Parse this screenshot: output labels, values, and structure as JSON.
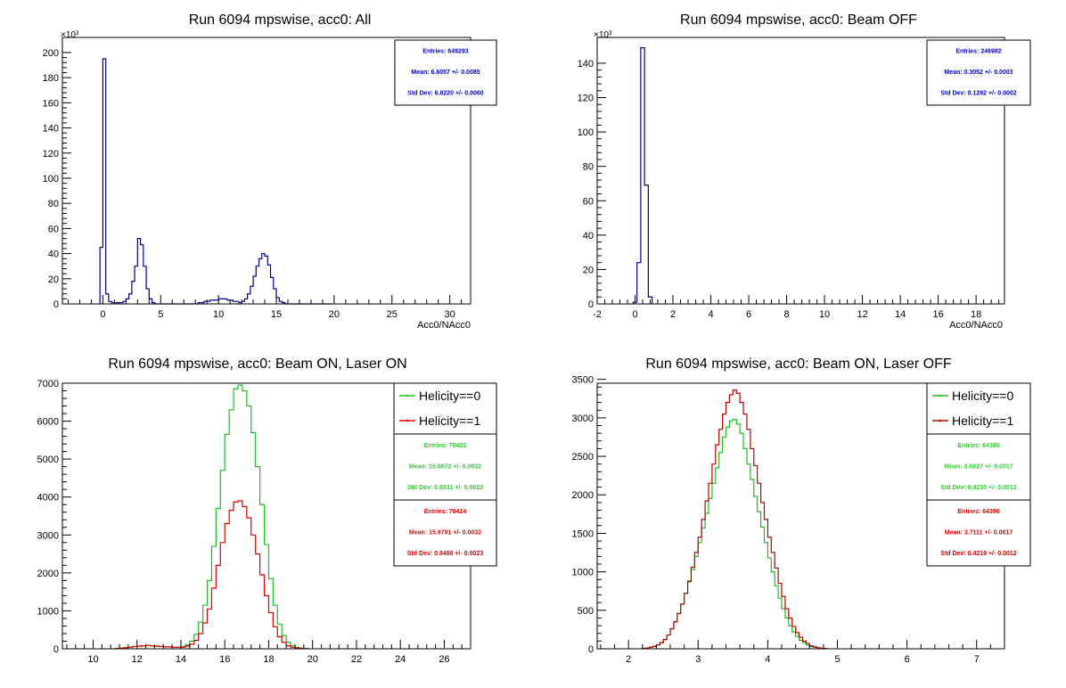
{
  "chart_data": [
    {
      "type": "histogram",
      "title": "Run 6094 mpswise, acc0: All",
      "xlabel": "Acc0/NAcc0",
      "ylabel": "",
      "y_exponent_label": "×10³",
      "xlim": [
        -3.5,
        31.8
      ],
      "ylim": [
        0,
        212
      ],
      "xticks": [
        0,
        5,
        10,
        15,
        20,
        25,
        30
      ],
      "yticks": [
        0,
        20,
        40,
        60,
        80,
        100,
        120,
        140,
        160,
        180,
        200
      ],
      "series": [
        {
          "color": "#000099",
          "bin_start": -0.25,
          "bin_width": 0.25,
          "values": [
            45,
            195,
            8,
            2,
            1,
            1,
            1,
            1,
            2,
            4,
            8,
            18,
            30,
            52,
            47,
            30,
            12,
            4,
            1,
            0,
            0,
            0,
            0,
            0,
            0,
            0,
            0,
            0,
            0,
            0,
            0,
            0,
            0,
            0,
            1,
            1,
            2,
            2,
            3,
            3,
            3,
            4,
            4,
            4,
            3,
            3,
            2,
            2,
            1,
            2,
            4,
            8,
            14,
            22,
            30,
            36,
            40,
            38,
            31,
            21,
            12,
            5,
            2,
            1,
            0,
            0,
            0,
            0,
            0,
            0,
            0,
            0,
            0,
            0,
            0,
            0,
            0,
            0,
            0,
            0
          ]
        }
      ],
      "stats": [
        {
          "color": "#0000cc",
          "entries_label": "Entries: 649293",
          "mean_label": "Mean: 6.6057 +/- 0.0085",
          "std_label": "Std Dev: 6.8220 +/- 0.0060"
        }
      ]
    },
    {
      "type": "histogram",
      "title": "Run 6094 mpswise, acc0: Beam OFF",
      "xlabel": "Acc0/NAcc0",
      "ylabel": "",
      "y_exponent_label": "×10³",
      "xlim": [
        -2,
        19.5
      ],
      "ylim": [
        0,
        155
      ],
      "xticks": [
        -2,
        0,
        2,
        4,
        6,
        8,
        10,
        12,
        14,
        16,
        18
      ],
      "yticks": [
        0,
        20,
        40,
        60,
        80,
        100,
        120,
        140
      ],
      "series": [
        {
          "color": "#000099",
          "bin_start": -0.1,
          "bin_width": 0.2,
          "values": [
            1,
            24,
            149,
            69,
            4
          ]
        }
      ],
      "stats": [
        {
          "color": "#0000cc",
          "entries_label": "Entries: 246982",
          "mean_label": "Mean: 0.3052 +/- 0.0003",
          "std_label": "Std Dev: 0.1292 +/- 0.0002"
        }
      ]
    },
    {
      "type": "histogram",
      "title": "Run 6094 mpswise, acc0: Beam ON, Laser ON",
      "xlabel": "",
      "ylabel": "",
      "xlim": [
        8.6,
        27.2
      ],
      "ylim": [
        0,
        7000
      ],
      "xticks": [
        10,
        12,
        14,
        16,
        18,
        20,
        22,
        24,
        26
      ],
      "yticks": [
        0,
        1000,
        2000,
        3000,
        4000,
        5000,
        6000,
        7000
      ],
      "legend": {
        "position": "top-right",
        "items": [
          "Helicity==0",
          "Helicity==1"
        ]
      },
      "series": [
        {
          "name": "Helicity==0",
          "color": "#22bb22",
          "bin_start": 11.0,
          "bin_width": 0.2,
          "values": [
            10,
            20,
            30,
            40,
            60,
            70,
            80,
            90,
            80,
            70,
            60,
            50,
            50,
            40,
            40,
            60,
            100,
            200,
            380,
            700,
            1150,
            1800,
            2700,
            3700,
            4700,
            5650,
            6300,
            6850,
            6950,
            6800,
            6400,
            5700,
            4800,
            3800,
            2750,
            1850,
            1150,
            650,
            350,
            170,
            80,
            40,
            20,
            10
          ]
        },
        {
          "name": "Helicity==1",
          "color": "#dd0000",
          "bin_start": 11.0,
          "bin_width": 0.2,
          "values": [
            10,
            20,
            30,
            40,
            60,
            70,
            80,
            90,
            80,
            70,
            60,
            50,
            50,
            40,
            40,
            40,
            70,
            120,
            220,
            400,
            680,
            1050,
            1600,
            2200,
            2800,
            3300,
            3650,
            3870,
            3900,
            3750,
            3450,
            3000,
            2500,
            1950,
            1400,
            950,
            580,
            320,
            170,
            80,
            40,
            20,
            10,
            5
          ]
        }
      ],
      "stats": [
        {
          "color": "#33cc33",
          "entries_label": "Entries: 70423",
          "mean_label": "Mean: 15.8672 +/- 0.0032",
          "std_label": "Std Dev: 0.8531 +/- 0.0023"
        },
        {
          "color": "#ee0000",
          "entries_label": "Entries: 70424",
          "mean_label": "Mean: 15.8791 +/- 0.0032",
          "std_label": "Std Dev: 0.8488 +/- 0.0023"
        }
      ]
    },
    {
      "type": "histogram",
      "title": "Run 6094 mpswise, acc0: Beam ON, Laser OFF",
      "xlabel": "",
      "ylabel": "",
      "xlim": [
        1.55,
        7.4
      ],
      "ylim": [
        0,
        3450
      ],
      "xticks": [
        2,
        3,
        4,
        5,
        6,
        7
      ],
      "yticks": [
        0,
        500,
        1000,
        1500,
        2000,
        2500,
        3000,
        3500
      ],
      "legend": {
        "position": "top-right",
        "items": [
          "Helicity==0",
          "Helicity==1"
        ]
      },
      "series": [
        {
          "name": "Helicity==0",
          "color": "#22bb22",
          "bin_start": 2.2,
          "bin_width": 0.05,
          "values": [
            5,
            10,
            20,
            30,
            50,
            80,
            120,
            180,
            260,
            350,
            460,
            580,
            720,
            870,
            1030,
            1200,
            1380,
            1570,
            1760,
            1950,
            2150,
            2350,
            2550,
            2750,
            2880,
            2960,
            2980,
            2920,
            2800,
            2600,
            2400,
            2200,
            1980,
            1780,
            1580,
            1380,
            1180,
            1000,
            820,
            660,
            520,
            400,
            300,
            220,
            160,
            110,
            80,
            50,
            30,
            20,
            12,
            8,
            5
          ]
        },
        {
          "name": "Helicity==1",
          "color": "#bb0000",
          "bin_start": 2.2,
          "bin_width": 0.05,
          "values": [
            5,
            10,
            20,
            30,
            50,
            80,
            120,
            180,
            260,
            350,
            460,
            580,
            720,
            880,
            1060,
            1250,
            1450,
            1680,
            1920,
            2150,
            2400,
            2650,
            2850,
            3050,
            3200,
            3300,
            3360,
            3320,
            3200,
            3050,
            2850,
            2600,
            2380,
            2150,
            1900,
            1680,
            1450,
            1250,
            1050,
            850,
            680,
            520,
            400,
            290,
            210,
            150,
            100,
            70,
            40,
            25,
            15,
            8,
            5
          ]
        }
      ],
      "stats": [
        {
          "color": "#33cc33",
          "entries_label": "Entries: 64385",
          "mean_label": "Mean: 3.6927 +/- 0.0017",
          "std_label": "Std Dev: 0.4235 +/- 0.0012"
        },
        {
          "color": "#dd0000",
          "entries_label": "Entries: 64396",
          "mean_label": "Mean: 3.7111 +/- 0.0017",
          "std_label": "Std Dev: 0.4219 +/- 0.0012"
        }
      ]
    }
  ]
}
